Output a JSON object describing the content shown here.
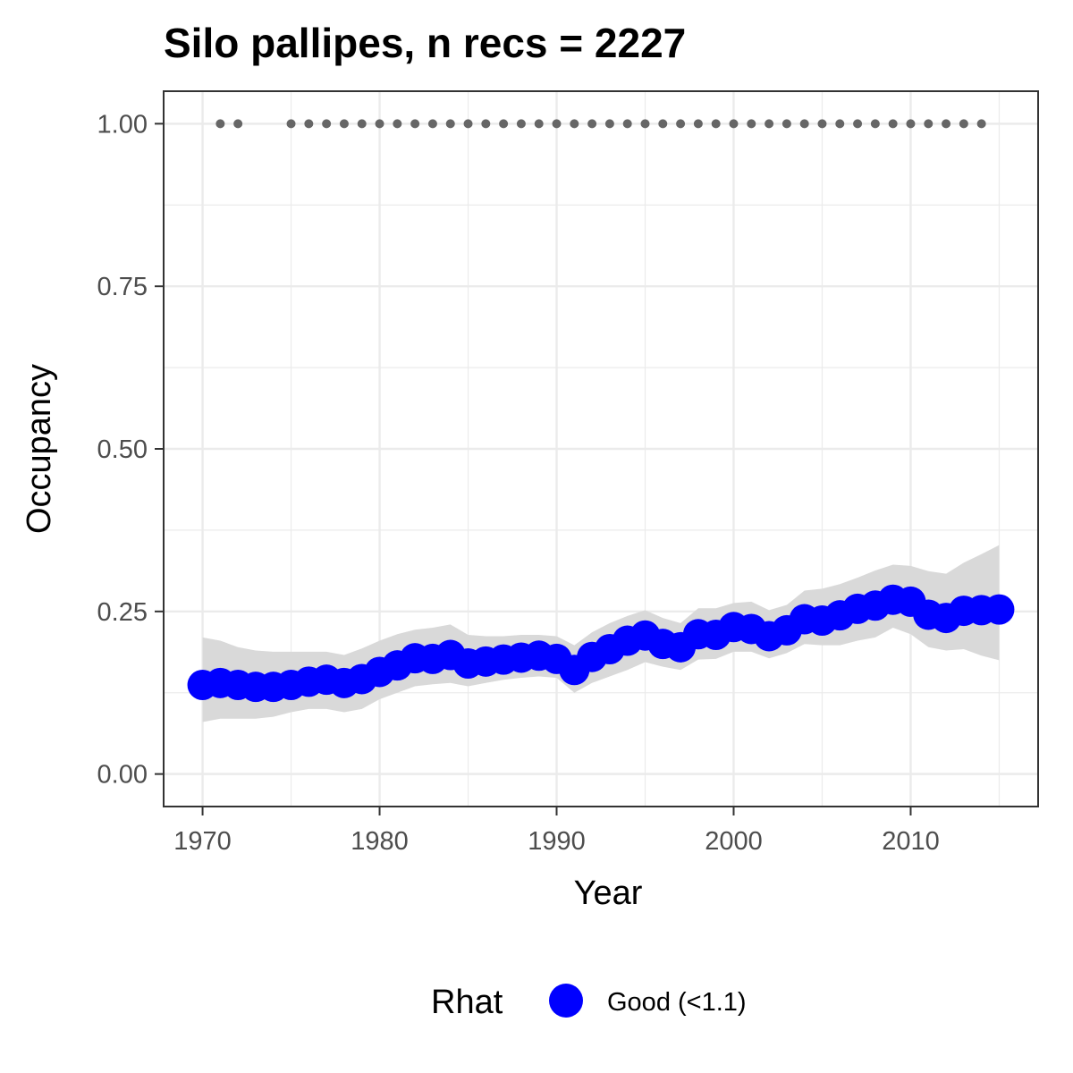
{
  "chart_data": {
    "type": "line",
    "title": "Silo pallipes, n recs = 2227",
    "xlabel": "Year",
    "ylabel": "Occupancy",
    "xlim": [
      1967.8,
      2017.2
    ],
    "ylim": [
      -0.05,
      1.05
    ],
    "x_ticks": [
      1970,
      1980,
      1990,
      2000,
      2010
    ],
    "x_tick_labels": [
      "1970",
      "1980",
      "1990",
      "2000",
      "2010"
    ],
    "y_ticks": [
      0,
      0.25,
      0.5,
      0.75,
      1.0
    ],
    "y_tick_labels": [
      "0.00",
      "0.25",
      "0.50",
      "0.75",
      "1.00"
    ],
    "grid": true,
    "legend": {
      "title": "Rhat",
      "position": "bottom",
      "entries": [
        {
          "label": "Good (<1.1)",
          "color": "#0000ff"
        }
      ]
    },
    "colors": {
      "series": "#0000ff",
      "ribbon": "#d9d9d9",
      "record_dots": "#666666",
      "grid": "#ebebeb",
      "panel_border": "#333333"
    },
    "series": [
      {
        "x": [
          1970,
          1971,
          1972,
          1973,
          1974,
          1975,
          1976,
          1977,
          1978,
          1979,
          1980,
          1981,
          1982,
          1983,
          1984,
          1985,
          1986,
          1987,
          1988,
          1989,
          1990,
          1991,
          1992,
          1993,
          1994,
          1995,
          1996,
          1997,
          1998,
          1999,
          2000,
          2001,
          2002,
          2003,
          2004,
          2005,
          2006,
          2007,
          2008,
          2009,
          2010,
          2011,
          2012,
          2013,
          2014,
          2015
        ],
        "y": [
          0.137,
          0.14,
          0.137,
          0.134,
          0.134,
          0.137,
          0.142,
          0.145,
          0.14,
          0.146,
          0.157,
          0.167,
          0.178,
          0.177,
          0.183,
          0.17,
          0.173,
          0.176,
          0.179,
          0.182,
          0.177,
          0.16,
          0.18,
          0.192,
          0.205,
          0.213,
          0.2,
          0.195,
          0.215,
          0.214,
          0.226,
          0.223,
          0.212,
          0.221,
          0.238,
          0.236,
          0.244,
          0.254,
          0.259,
          0.268,
          0.265,
          0.245,
          0.24,
          0.251,
          0.252,
          0.253
        ],
        "lower": [
          0.08,
          0.085,
          0.085,
          0.085,
          0.088,
          0.095,
          0.1,
          0.1,
          0.095,
          0.1,
          0.115,
          0.125,
          0.135,
          0.138,
          0.14,
          0.135,
          0.14,
          0.145,
          0.148,
          0.15,
          0.148,
          0.125,
          0.14,
          0.15,
          0.16,
          0.172,
          0.165,
          0.16,
          0.176,
          0.177,
          0.188,
          0.188,
          0.178,
          0.186,
          0.2,
          0.198,
          0.198,
          0.205,
          0.21,
          0.225,
          0.215,
          0.195,
          0.19,
          0.192,
          0.182,
          0.175
        ],
        "upper": [
          0.21,
          0.205,
          0.195,
          0.19,
          0.188,
          0.188,
          0.188,
          0.188,
          0.183,
          0.193,
          0.205,
          0.215,
          0.222,
          0.225,
          0.23,
          0.214,
          0.212,
          0.212,
          0.214,
          0.214,
          0.212,
          0.198,
          0.218,
          0.232,
          0.243,
          0.252,
          0.24,
          0.232,
          0.255,
          0.255,
          0.263,
          0.265,
          0.252,
          0.26,
          0.282,
          0.285,
          0.292,
          0.302,
          0.313,
          0.322,
          0.32,
          0.312,
          0.308,
          0.325,
          0.338,
          0.352
        ]
      }
    ],
    "record_years": [
      1971,
      1972,
      1975,
      1976,
      1977,
      1978,
      1979,
      1980,
      1981,
      1982,
      1983,
      1984,
      1985,
      1986,
      1987,
      1988,
      1989,
      1990,
      1991,
      1992,
      1993,
      1994,
      1995,
      1996,
      1997,
      1998,
      1999,
      2000,
      2001,
      2002,
      2003,
      2004,
      2005,
      2006,
      2007,
      2008,
      2009,
      2010,
      2011,
      2012,
      2013,
      2014
    ],
    "record_value": 1.0
  }
}
